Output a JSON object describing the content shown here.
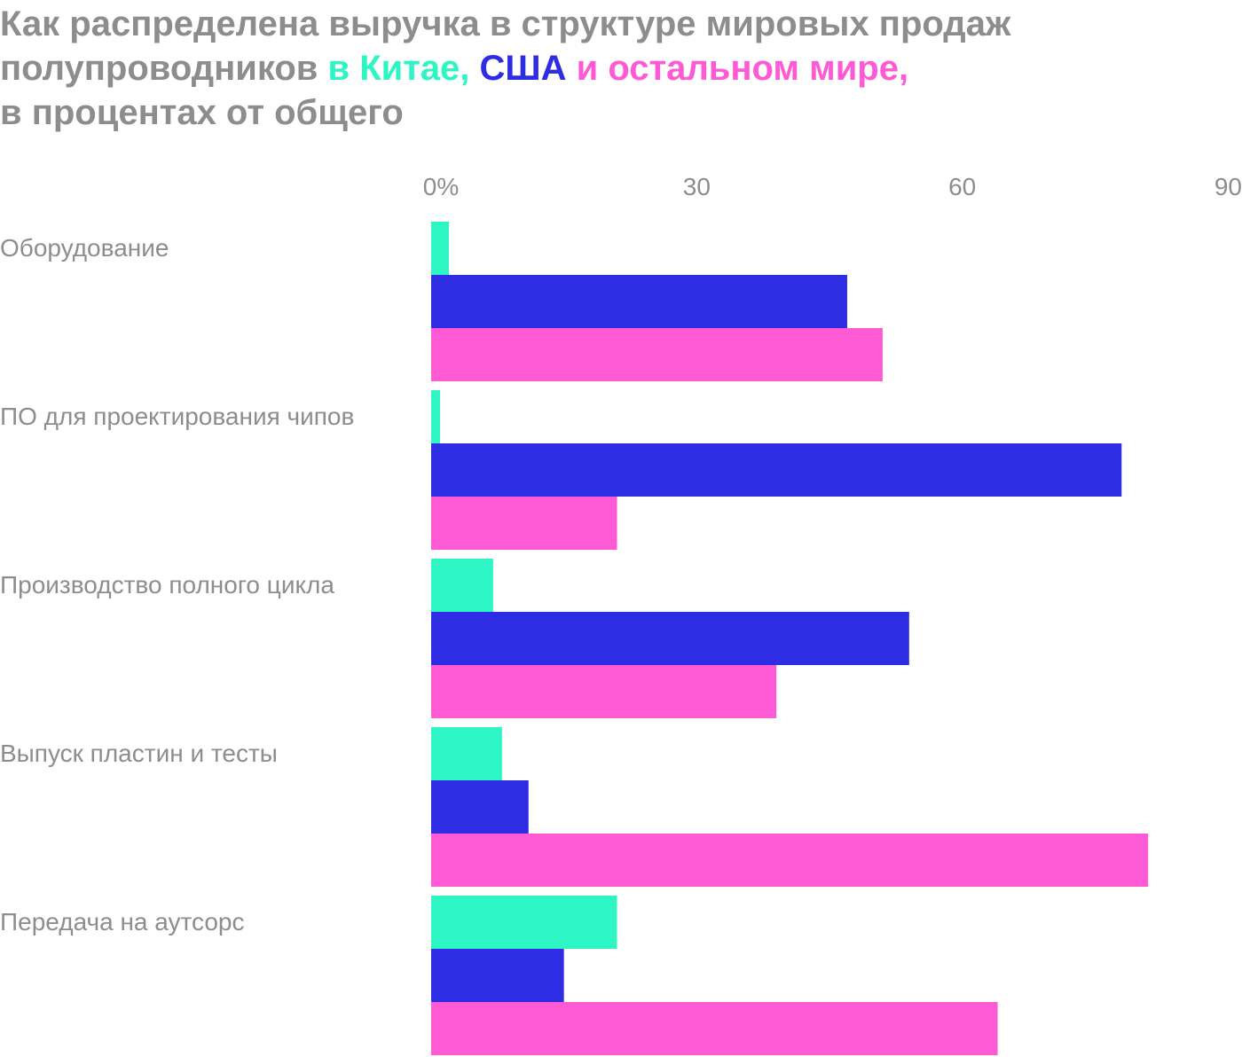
{
  "chart_data": {
    "type": "hbar",
    "title_lines": [
      "Как распределена выручка в структуре мировых продаж",
      "полупроводников"
    ],
    "subtitle": "в процентах от общего",
    "categories": [
      "Оборудование",
      "ПО для проектирования чипов",
      "Производство полного цикла",
      "Выпуск пластин и тесты",
      "Передача на аутсорс"
    ],
    "series": [
      {
        "name": "в Китае,",
        "color": "#2ef5c4",
        "values": [
          2,
          1,
          7,
          8,
          21
        ]
      },
      {
        "name": "США",
        "color": "#2f2de3",
        "values": [
          47,
          78,
          54,
          11,
          15
        ]
      },
      {
        "name": "и остальном мире,",
        "color": "#ff5ad5",
        "values": [
          51,
          21,
          39,
          81,
          64
        ]
      }
    ],
    "xlim": [
      0,
      90
    ],
    "xticks": [
      {
        "value": 0,
        "label": "0%"
      },
      30,
      60,
      90
    ]
  }
}
